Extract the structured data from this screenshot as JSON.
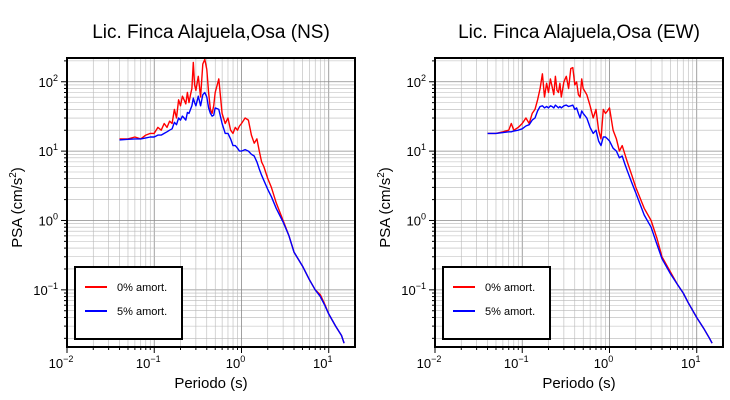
{
  "chart_data": [
    {
      "type": "line",
      "title": "Lic. Finca Alajuela,Osa (NS)",
      "xlabel": "Periodo (s)",
      "ylabel_main": "PSA (cm/s",
      "ylabel_sup": "2",
      "ylabel_close": ")",
      "xscale": "log",
      "yscale": "log",
      "xlim": [
        0.01,
        20
      ],
      "ylim": [
        0.015,
        220
      ],
      "x_ticks": [
        {
          "base": "10",
          "exp": "−2"
        },
        {
          "base": "10",
          "exp": "−1"
        },
        {
          "base": "10",
          "exp": "0"
        },
        {
          "base": "10",
          "exp": "1"
        }
      ],
      "y_ticks": [
        {
          "base": "10",
          "exp": "−1"
        },
        {
          "base": "10",
          "exp": "0"
        },
        {
          "base": "10",
          "exp": "1"
        },
        {
          "base": "10",
          "exp": "2"
        }
      ],
      "grid": true,
      "legend_position": "bottom-left",
      "series": [
        {
          "name": "0% amort.",
          "color": "#ff0000",
          "x": [
            0.04,
            0.05,
            0.06,
            0.07,
            0.08,
            0.09,
            0.1,
            0.11,
            0.12,
            0.13,
            0.14,
            0.15,
            0.16,
            0.17,
            0.18,
            0.19,
            0.2,
            0.21,
            0.22,
            0.23,
            0.24,
            0.25,
            0.26,
            0.27,
            0.28,
            0.29,
            0.3,
            0.32,
            0.34,
            0.36,
            0.38,
            0.4,
            0.42,
            0.44,
            0.46,
            0.48,
            0.5,
            0.55,
            0.6,
            0.65,
            0.7,
            0.75,
            0.8,
            0.85,
            0.9,
            0.95,
            1.0,
            1.1,
            1.2,
            1.3,
            1.4,
            1.5,
            1.6,
            1.7,
            1.8,
            2.0,
            2.2,
            2.5,
            3.0,
            3.5,
            4.0,
            5.0,
            6.0,
            7.0,
            8.0,
            9.0,
            10.0,
            12.0,
            14.0,
            15.0
          ],
          "y": [
            15,
            15,
            16,
            15,
            17,
            18,
            18,
            22,
            20,
            25,
            22,
            27,
            25,
            40,
            30,
            55,
            45,
            62,
            55,
            48,
            70,
            50,
            65,
            80,
            190,
            90,
            75,
            120,
            60,
            180,
            210,
            150,
            70,
            40,
            35,
            45,
            70,
            110,
            35,
            25,
            30,
            20,
            18,
            22,
            20,
            23,
            25,
            30,
            28,
            17,
            13,
            15,
            10,
            7,
            6,
            4,
            3.0,
            1.8,
            1.0,
            0.6,
            0.35,
            0.22,
            0.14,
            0.1,
            0.085,
            0.062,
            0.045,
            0.03,
            0.022,
            0.017
          ]
        },
        {
          "name": "5% amort.",
          "color": "#0000ff",
          "x": [
            0.04,
            0.05,
            0.06,
            0.07,
            0.08,
            0.09,
            0.1,
            0.11,
            0.12,
            0.13,
            0.14,
            0.15,
            0.16,
            0.17,
            0.18,
            0.19,
            0.2,
            0.21,
            0.22,
            0.23,
            0.24,
            0.25,
            0.26,
            0.27,
            0.28,
            0.29,
            0.3,
            0.32,
            0.34,
            0.36,
            0.38,
            0.4,
            0.42,
            0.44,
            0.46,
            0.48,
            0.5,
            0.55,
            0.6,
            0.65,
            0.7,
            0.75,
            0.8,
            0.85,
            0.9,
            0.95,
            1.0,
            1.1,
            1.2,
            1.3,
            1.4,
            1.5,
            1.6,
            1.7,
            1.8,
            2.0,
            2.2,
            2.5,
            3.0,
            3.5,
            4.0,
            5.0,
            6.0,
            7.0,
            8.0,
            9.0,
            10.0,
            12.0,
            14.0,
            15.0
          ],
          "y": [
            14.5,
            14.8,
            15,
            15,
            15.5,
            16,
            16,
            17,
            17,
            18,
            19,
            20,
            21,
            26,
            24,
            30,
            28,
            32,
            30,
            28,
            36,
            35,
            40,
            45,
            58,
            50,
            45,
            62,
            45,
            65,
            70,
            60,
            42,
            35,
            32,
            33,
            42,
            40,
            25,
            18,
            18,
            15,
            12,
            12,
            11,
            10,
            10,
            10.5,
            10,
            9,
            8.5,
            7,
            5.5,
            4.5,
            3.8,
            2.8,
            2.2,
            1.5,
            0.95,
            0.6,
            0.35,
            0.22,
            0.14,
            0.1,
            0.08,
            0.06,
            0.045,
            0.03,
            0.022,
            0.017
          ]
        }
      ]
    },
    {
      "type": "line",
      "title": "Lic. Finca Alajuela,Osa (EW)",
      "xlabel": "Periodo (s)",
      "ylabel_main": "PSA (cm/s",
      "ylabel_sup": "2",
      "ylabel_close": ")",
      "xscale": "log",
      "yscale": "log",
      "xlim": [
        0.01,
        20
      ],
      "ylim": [
        0.015,
        220
      ],
      "x_ticks": [
        {
          "base": "10",
          "exp": "−2"
        },
        {
          "base": "10",
          "exp": "−1"
        },
        {
          "base": "10",
          "exp": "0"
        },
        {
          "base": "10",
          "exp": "1"
        }
      ],
      "y_ticks": [
        {
          "base": "10",
          "exp": "−1"
        },
        {
          "base": "10",
          "exp": "0"
        },
        {
          "base": "10",
          "exp": "1"
        },
        {
          "base": "10",
          "exp": "2"
        }
      ],
      "grid": true,
      "legend_position": "bottom-left",
      "series": [
        {
          "name": "0% amort.",
          "color": "#ff0000",
          "x": [
            0.04,
            0.05,
            0.06,
            0.07,
            0.075,
            0.08,
            0.09,
            0.1,
            0.11,
            0.12,
            0.13,
            0.14,
            0.15,
            0.16,
            0.17,
            0.18,
            0.19,
            0.2,
            0.21,
            0.22,
            0.23,
            0.24,
            0.25,
            0.26,
            0.27,
            0.28,
            0.3,
            0.32,
            0.34,
            0.36,
            0.38,
            0.4,
            0.42,
            0.44,
            0.46,
            0.48,
            0.5,
            0.55,
            0.6,
            0.65,
            0.7,
            0.75,
            0.8,
            0.85,
            0.9,
            0.95,
            1.0,
            1.1,
            1.2,
            1.3,
            1.4,
            1.5,
            1.6,
            1.8,
            2.0,
            2.5,
            3.0,
            3.5,
            4.0,
            5.0,
            6.0,
            7.0,
            8.0,
            10.0,
            12.0,
            14.0,
            15.0
          ],
          "y": [
            18,
            18,
            19,
            20,
            25,
            20,
            22,
            25,
            30,
            25,
            35,
            40,
            55,
            80,
            130,
            60,
            95,
            70,
            110,
            85,
            65,
            120,
            75,
            70,
            95,
            60,
            100,
            120,
            80,
            155,
            160,
            90,
            100,
            65,
            60,
            110,
            80,
            65,
            45,
            30,
            40,
            20,
            15,
            40,
            35,
            38,
            42,
            20,
            15,
            10,
            12,
            9,
            7,
            4.5,
            3.0,
            1.5,
            1.0,
            0.55,
            0.3,
            0.18,
            0.12,
            0.09,
            0.065,
            0.04,
            0.028,
            0.02,
            0.017
          ]
        },
        {
          "name": "5% amort.",
          "color": "#0000ff",
          "x": [
            0.04,
            0.05,
            0.06,
            0.07,
            0.075,
            0.08,
            0.09,
            0.1,
            0.11,
            0.12,
            0.13,
            0.14,
            0.15,
            0.16,
            0.17,
            0.18,
            0.19,
            0.2,
            0.21,
            0.22,
            0.23,
            0.24,
            0.25,
            0.26,
            0.27,
            0.28,
            0.3,
            0.32,
            0.34,
            0.36,
            0.38,
            0.4,
            0.42,
            0.44,
            0.46,
            0.48,
            0.5,
            0.55,
            0.6,
            0.65,
            0.7,
            0.75,
            0.8,
            0.85,
            0.9,
            0.95,
            1.0,
            1.1,
            1.2,
            1.3,
            1.4,
            1.5,
            1.6,
            1.8,
            2.0,
            2.5,
            3.0,
            3.5,
            4.0,
            5.0,
            6.0,
            7.0,
            8.0,
            10.0,
            12.0,
            14.0,
            15.0
          ],
          "y": [
            18,
            18,
            18.5,
            19,
            19,
            19.5,
            20,
            21,
            23,
            24,
            28,
            30,
            38,
            44,
            45,
            42,
            44,
            42,
            45,
            44,
            42,
            46,
            44,
            42,
            44,
            42,
            45,
            46,
            44,
            45,
            46,
            40,
            42,
            35,
            30,
            38,
            35,
            30,
            22,
            18,
            20,
            14,
            12,
            16,
            16,
            15,
            14,
            11,
            10,
            8,
            8.5,
            6.5,
            5.2,
            3.5,
            2.5,
            1.2,
            0.8,
            0.45,
            0.28,
            0.17,
            0.12,
            0.09,
            0.065,
            0.04,
            0.028,
            0.02,
            0.017
          ]
        }
      ]
    }
  ]
}
